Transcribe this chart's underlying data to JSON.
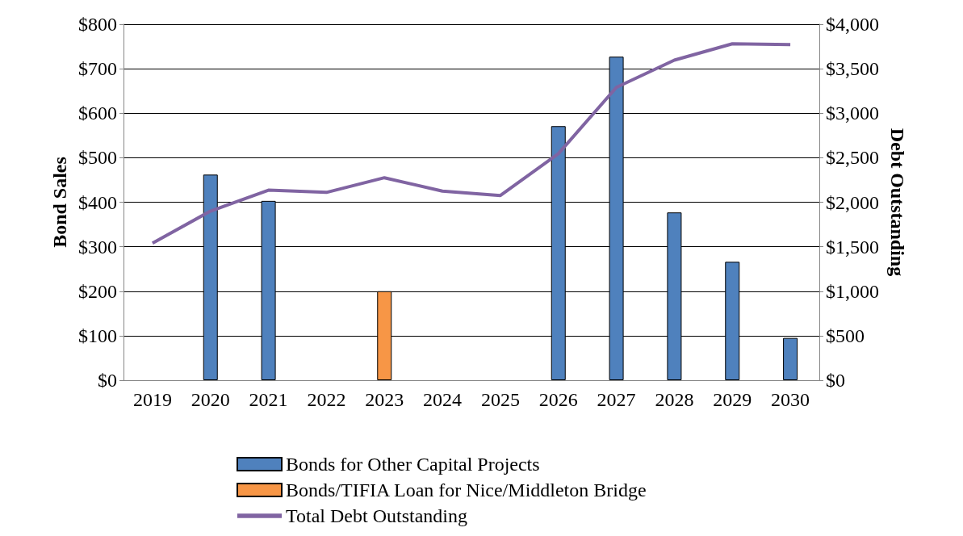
{
  "chart_data": {
    "type": "bar",
    "ylabel": "Bond Sales",
    "y2label": "Debt Outstanding",
    "categories": [
      "2019",
      "2020",
      "2021",
      "2022",
      "2023",
      "2024",
      "2025",
      "2026",
      "2027",
      "2028",
      "2029",
      "2030"
    ],
    "series": [
      {
        "name": "Bonds for Other Capital Projects",
        "color": "#4f81bd",
        "values": [
          null,
          462,
          403,
          null,
          null,
          null,
          null,
          571,
          727,
          377,
          266,
          95
        ]
      },
      {
        "name": "Bonds/TIFIA Loan for Nice/Middleton Bridge",
        "color": "#f79646",
        "values": [
          null,
          null,
          null,
          null,
          200,
          null,
          null,
          null,
          null,
          null,
          null,
          null
        ]
      },
      {
        "name": "Total Debt Outstanding",
        "type": "line",
        "axis": "y2",
        "color": "#8064a2",
        "values": [
          1540,
          1900,
          2135,
          2110,
          2275,
          2125,
          2075,
          2545,
          3290,
          3596,
          3780,
          3771
        ]
      }
    ],
    "ylim": [
      0,
      800
    ],
    "yticks": [
      {
        "value": 0,
        "label": "$0"
      },
      {
        "value": 100,
        "label": "$100"
      },
      {
        "value": 200,
        "label": "$200"
      },
      {
        "value": 300,
        "label": "$300"
      },
      {
        "value": 400,
        "label": "$400"
      },
      {
        "value": 500,
        "label": "$500"
      },
      {
        "value": 600,
        "label": "$600"
      },
      {
        "value": 700,
        "label": "$700"
      },
      {
        "value": 800,
        "label": "$800"
      }
    ],
    "y2lim": [
      0,
      4000
    ],
    "y2ticks": [
      {
        "value": 0,
        "label": "$0"
      },
      {
        "value": 500,
        "label": "$500"
      },
      {
        "value": 1000,
        "label": "$1,000"
      },
      {
        "value": 1500,
        "label": "$1,500"
      },
      {
        "value": 2000,
        "label": "$2,000"
      },
      {
        "value": 2500,
        "label": "$2,500"
      },
      {
        "value": 3000,
        "label": "$3,000"
      },
      {
        "value": 3500,
        "label": "$3,500"
      },
      {
        "value": 4000,
        "label": "$4,000"
      }
    ],
    "grid": "y",
    "legend": "bottom",
    "marker": "none",
    "line_style": "solid"
  }
}
